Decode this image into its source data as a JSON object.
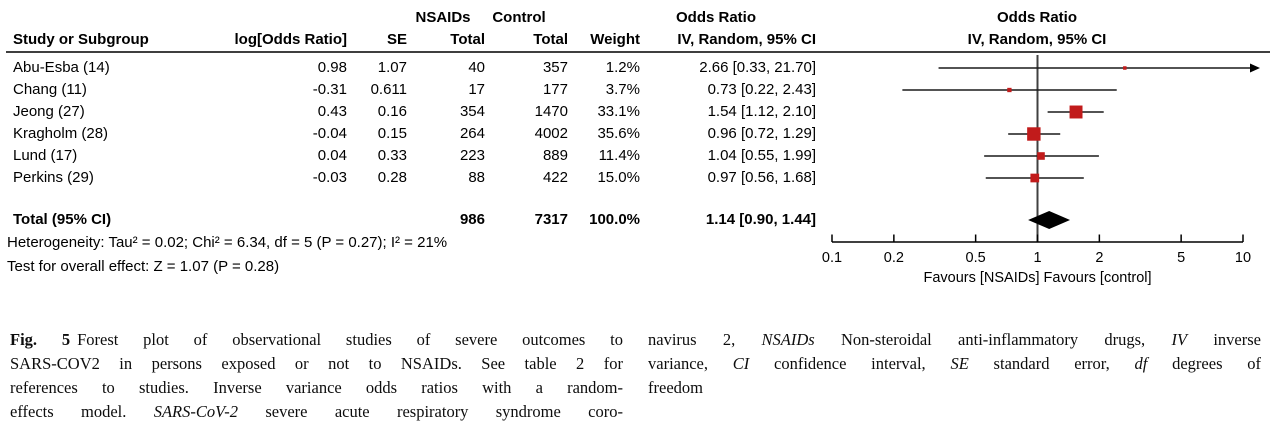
{
  "colors": {
    "marker": "#c11b1b",
    "diamond": "#000000",
    "ci_line": "#1a1a1a",
    "header_rule": "#3f3f3f",
    "null_line": "#404040"
  },
  "header": {
    "group1": "NSAIDs",
    "group2": "Control",
    "or_col_title": "Odds Ratio",
    "or_plot_title": "Odds Ratio",
    "study": "Study or Subgroup",
    "log_or": "log[Odds Ratio]",
    "se": "SE",
    "total_nsaids": "Total",
    "total_control": "Total",
    "weight": "Weight",
    "method_col": "IV, Random, 95% CI",
    "method_plot": "IV, Random, 95% CI"
  },
  "rows": [
    {
      "study": "Abu-Esba (14)",
      "log_or": "0.98",
      "se": "1.07",
      "nsaids_total": "40",
      "control_total": "357",
      "weight": "1.2%",
      "or_ci": "2.66 [0.33, 21.70]"
    },
    {
      "study": "Chang (11)",
      "log_or": "-0.31",
      "se": "0.611",
      "nsaids_total": "17",
      "control_total": "177",
      "weight": "3.7%",
      "or_ci": "0.73 [0.22, 2.43]"
    },
    {
      "study": "Jeong (27)",
      "log_or": "0.43",
      "se": "0.16",
      "nsaids_total": "354",
      "control_total": "1470",
      "weight": "33.1%",
      "or_ci": "1.54 [1.12, 2.10]"
    },
    {
      "study": "Kragholm (28)",
      "log_or": "-0.04",
      "se": "0.15",
      "nsaids_total": "264",
      "control_total": "4002",
      "weight": "35.6%",
      "or_ci": "0.96 [0.72, 1.29]"
    },
    {
      "study": "Lund (17)",
      "log_or": "0.04",
      "se": "0.33",
      "nsaids_total": "223",
      "control_total": "889",
      "weight": "11.4%",
      "or_ci": "1.04 [0.55, 1.99]"
    },
    {
      "study": "Perkins (29)",
      "log_or": "-0.03",
      "se": "0.28",
      "nsaids_total": "88",
      "control_total": "422",
      "weight": "15.0%",
      "or_ci": "0.97 [0.56, 1.68]"
    }
  ],
  "total": {
    "label": "Total (95% CI)",
    "nsaids_total": "986",
    "control_total": "7317",
    "weight": "100.0%",
    "or_ci": "1.14 [0.90, 1.44]"
  },
  "footer": {
    "heterogeneity": "Heterogeneity: Tau² = 0.02; Chi² = 6.34, df = 5 (P = 0.27); I² = 21%",
    "overall": "Test for overall effect: Z = 1.07 (P = 0.28)"
  },
  "chart_data": {
    "type": "forest",
    "x_scale": "log",
    "xlim": [
      0.1,
      10
    ],
    "x_tick_values": [
      0.1,
      0.2,
      0.5,
      1,
      2,
      5,
      10
    ],
    "x_ticks": [
      "0.1",
      "0.2",
      "0.5",
      "1",
      "2",
      "5",
      "10"
    ],
    "null_line": 1,
    "axis_caption": "Favours [NSAIDs]  Favours [control]",
    "series": [
      {
        "name": "Abu-Esba (14)",
        "or": 2.66,
        "low": 0.33,
        "high": 21.7,
        "weight_pct": 1.2
      },
      {
        "name": "Chang (11)",
        "or": 0.73,
        "low": 0.22,
        "high": 2.43,
        "weight_pct": 3.7
      },
      {
        "name": "Jeong (27)",
        "or": 1.54,
        "low": 1.12,
        "high": 2.1,
        "weight_pct": 33.1
      },
      {
        "name": "Kragholm (28)",
        "or": 0.96,
        "low": 0.72,
        "high": 1.29,
        "weight_pct": 35.6
      },
      {
        "name": "Lund (17)",
        "or": 1.04,
        "low": 0.55,
        "high": 1.99,
        "weight_pct": 11.4
      },
      {
        "name": "Perkins (29)",
        "or": 0.97,
        "low": 0.56,
        "high": 1.68,
        "weight_pct": 15.0
      }
    ],
    "total": {
      "or": 1.14,
      "low": 0.9,
      "high": 1.44
    }
  },
  "caption": {
    "left_lines": [
      [
        {
          "t": "Fig. 5",
          "b": 1
        },
        {
          "t": "Forest plot of observational studies of severe outcomes to"
        }
      ],
      [
        {
          "t": "SARS-COV2 in persons exposed or not to NSAIDs. See table 2 for"
        }
      ],
      [
        {
          "t": "references to studies. Inverse variance odds ratios with a random-"
        }
      ],
      [
        {
          "t": "effects model. "
        },
        {
          "t": "SARS-CoV-2",
          "i": 1
        },
        {
          "t": " severe acute respiratory syndrome coro-"
        }
      ]
    ],
    "right_lines": [
      [
        {
          "t": "navirus 2, "
        },
        {
          "t": "NSAIDs",
          "i": 1
        },
        {
          "t": " Non-steroidal anti-inflammatory drugs, "
        },
        {
          "t": "IV",
          "i": 1
        },
        {
          "t": " inverse"
        }
      ],
      [
        {
          "t": "variance, "
        },
        {
          "t": "CI",
          "i": 1
        },
        {
          "t": " confidence interval, "
        },
        {
          "t": "SE",
          "i": 1
        },
        {
          "t": " standard error, "
        },
        {
          "t": "df",
          "i": 1
        },
        {
          "t": " degrees of"
        }
      ],
      [
        {
          "t": "freedom"
        }
      ]
    ]
  }
}
